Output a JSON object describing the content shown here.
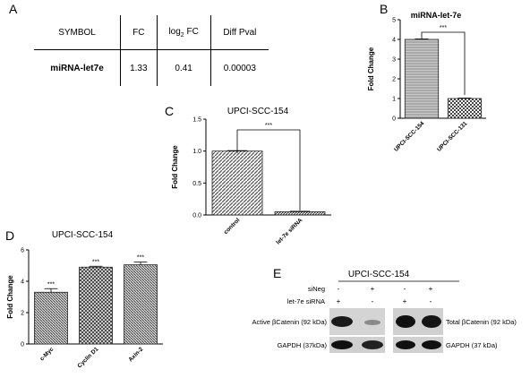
{
  "panels": {
    "A": "A",
    "B": "B",
    "C": "C",
    "D": "D",
    "E": "E"
  },
  "table": {
    "headers": [
      "SYMBOL",
      "FC",
      "log",
      "2",
      " FC",
      "Diff Pval"
    ],
    "row": [
      "miRNA-let7e",
      "1.33",
      "0.41",
      "0.00003"
    ]
  },
  "chart_data": [
    {
      "type": "bar",
      "panel": "B",
      "title": "miRNA-let-7e",
      "ylabel": "Fold Change",
      "categories": [
        "UPCI-SCC-154",
        "UPCI-SCC-131"
      ],
      "values": [
        4.0,
        1.0
      ],
      "ylim": [
        0,
        5
      ],
      "yticks": [
        "0",
        "1",
        "2",
        "3",
        "4",
        "5"
      ],
      "annotation": "***"
    },
    {
      "type": "bar",
      "panel": "C",
      "title": "UPCI-SCC-154",
      "ylabel": "Fold Change",
      "categories": [
        "control",
        "let-7e siRNA"
      ],
      "values": [
        1.0,
        0.05
      ],
      "ylim": [
        0,
        1.5
      ],
      "yticks": [
        "0.0",
        "0.5",
        "1.0",
        "1.5"
      ],
      "annotation": "***"
    },
    {
      "type": "bar",
      "panel": "D",
      "title": "UPCI-SCC-154",
      "ylabel": "Fold Change",
      "categories": [
        "c-Myc",
        "Cyclin D1",
        "Axin-2"
      ],
      "values": [
        3.3,
        4.9,
        5.05
      ],
      "ylim": [
        0,
        6
      ],
      "yticks": [
        "0",
        "2",
        "4",
        "6"
      ],
      "annotation": "***"
    }
  ],
  "blot": {
    "title": "UPCI-SCC-154",
    "row_labels": [
      "siNeg",
      "let-7e siRNA"
    ],
    "signs_left": [
      [
        "-",
        "+"
      ],
      [
        "+",
        "-"
      ]
    ],
    "signs_right": [
      [
        "-",
        "+"
      ],
      [
        "+",
        "-"
      ]
    ],
    "left_labels": [
      "Active βCatenin (92 kDa)",
      "GAPDH (37kDa)"
    ],
    "right_labels": [
      "Total βCatenin (92 kDa)",
      "GAPDH (37 kDa)"
    ]
  }
}
